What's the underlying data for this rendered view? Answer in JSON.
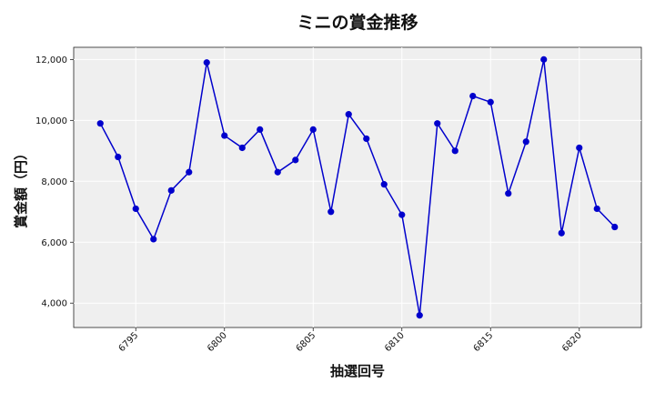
{
  "chart_data": {
    "type": "line",
    "title": "ミニの賞金推移",
    "xlabel": "抽選回号",
    "ylabel": "賞金額（円）",
    "x": [
      6793,
      6794,
      6795,
      6796,
      6797,
      6798,
      6799,
      6800,
      6801,
      6802,
      6803,
      6804,
      6805,
      6806,
      6807,
      6808,
      6809,
      6810,
      6811,
      6812,
      6813,
      6814,
      6815,
      6816,
      6817,
      6818,
      6819,
      6820,
      6821,
      6822
    ],
    "series": [
      {
        "values": [
          9900,
          8800,
          7100,
          6100,
          7700,
          8300,
          11900,
          9500,
          9100,
          9700,
          8300,
          8700,
          9700,
          7000,
          10200,
          9400,
          7900,
          6900,
          3600,
          9900,
          9000,
          10800,
          10600,
          7600,
          9300,
          12000,
          6300,
          9100,
          7100,
          6500
        ],
        "color": "#0000cc"
      }
    ],
    "xlim": [
      6791.5,
      6823.5
    ],
    "ylim": [
      3200,
      12400
    ],
    "xticks": [
      6795,
      6800,
      6805,
      6810,
      6815,
      6820
    ],
    "xtick_labels": [
      "6795",
      "6800",
      "6805",
      "6810",
      "6815",
      "6820"
    ],
    "yticks": [
      4000,
      6000,
      8000,
      10000,
      12000
    ],
    "ytick_labels": [
      "4,000",
      "6,000",
      "8,000",
      "10,000",
      "12,000"
    ],
    "grid": true,
    "plot_background": "#efefef",
    "grid_color": "#ffffff"
  }
}
